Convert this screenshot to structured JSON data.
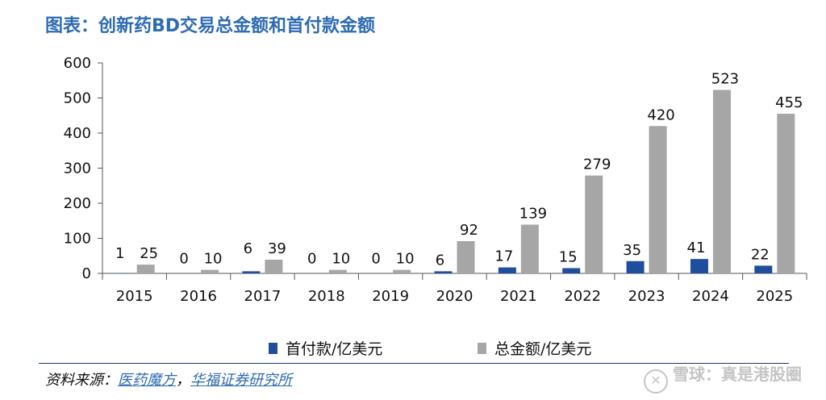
{
  "header": {
    "title": "图表：创新药BD交易总金额和首付款金额"
  },
  "legend": {
    "series_1": "首付款/亿美元",
    "series_2": "总金额/亿美元"
  },
  "footer": {
    "source_prefix": "资料来源：",
    "source_1": "医药魔方",
    "separator": "，",
    "source_2": "华福证券研究所",
    "watermark": "雪球：真是港股圈"
  },
  "colors": {
    "series_1": "#1f4e9c",
    "series_2": "#a6a6a6",
    "title": "#2e6bb3"
  },
  "chart_data": {
    "type": "bar",
    "categories": [
      "2015",
      "2016",
      "2017",
      "2018",
      "2019",
      "2020",
      "2021",
      "2022",
      "2023",
      "2024",
      "2025"
    ],
    "series": [
      {
        "name": "首付款/亿美元",
        "values": [
          1,
          0,
          6,
          0,
          0,
          6,
          17,
          15,
          35,
          41,
          22
        ]
      },
      {
        "name": "总金额/亿美元",
        "values": [
          25,
          10,
          39,
          10,
          10,
          92,
          139,
          279,
          420,
          523,
          455
        ]
      }
    ],
    "yticks": [
      0,
      100,
      200,
      300,
      400,
      500,
      600
    ],
    "ylim": [
      0,
      600
    ],
    "legend_position": "bottom",
    "grid": false
  }
}
